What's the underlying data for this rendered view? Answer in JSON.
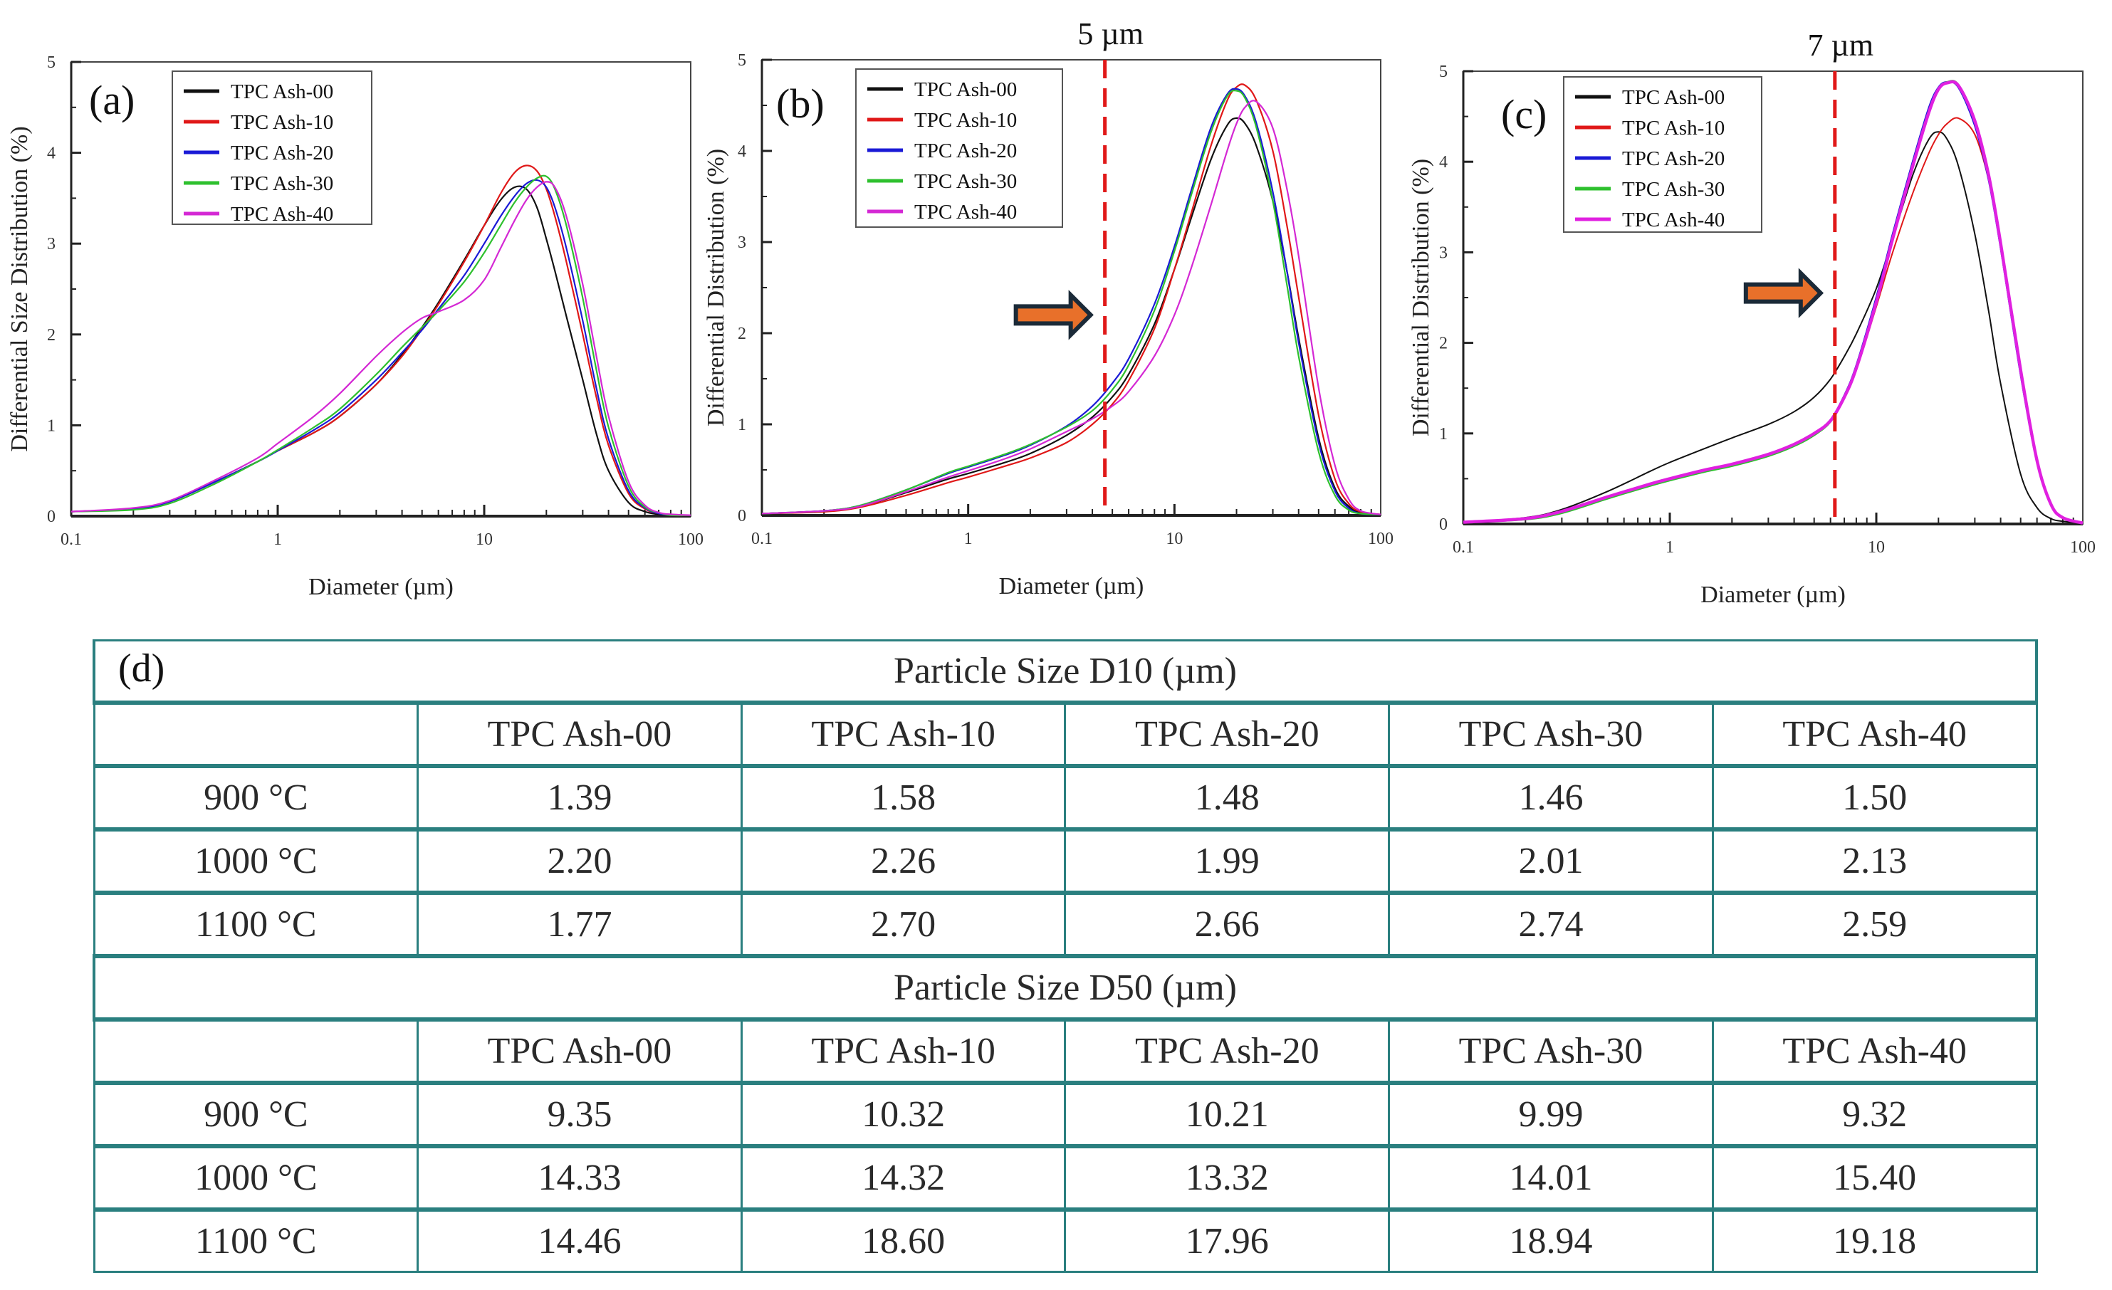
{
  "chart_data": [
    {
      "id": "a",
      "type": "line",
      "panel_label": "(a)",
      "title": "",
      "xlabel": "Diameter (µm)",
      "ylabel": "Differential Size Distribution (%)",
      "xscale": "log",
      "xlim": [
        0.1,
        100
      ],
      "ylim": [
        0,
        5
      ],
      "xticks": [
        "0.1",
        "1",
        "10",
        "100"
      ],
      "yticks": [
        "0",
        "1",
        "2",
        "3",
        "4",
        "5"
      ],
      "legend_position": "top-left",
      "annotation": null,
      "x": [
        0.1,
        0.2,
        0.3,
        0.5,
        0.8,
        1,
        1.5,
        2,
        3,
        4,
        5,
        6,
        8,
        10,
        12,
        14,
        16,
        18,
        20,
        22,
        25,
        30,
        35,
        40,
        50,
        60,
        70,
        80,
        100
      ],
      "series": [
        {
          "name": "TPC Ash-00",
          "color": "#111111",
          "values": [
            0.05,
            0.08,
            0.16,
            0.38,
            0.6,
            0.72,
            0.92,
            1.1,
            1.45,
            1.78,
            2.08,
            2.35,
            2.82,
            3.2,
            3.48,
            3.62,
            3.6,
            3.4,
            3.05,
            2.7,
            2.2,
            1.5,
            0.9,
            0.5,
            0.15,
            0.05,
            0.02,
            0.01,
            0.01
          ]
        },
        {
          "name": "TPC Ash-10",
          "color": "#e01818",
          "values": [
            0.05,
            0.08,
            0.16,
            0.38,
            0.6,
            0.72,
            0.92,
            1.1,
            1.45,
            1.76,
            2.06,
            2.33,
            2.8,
            3.2,
            3.55,
            3.78,
            3.86,
            3.8,
            3.6,
            3.3,
            2.8,
            2.0,
            1.3,
            0.78,
            0.25,
            0.08,
            0.03,
            0.01,
            0.01
          ]
        },
        {
          "name": "TPC Ash-20",
          "color": "#1a1ad6",
          "values": [
            0.05,
            0.08,
            0.16,
            0.38,
            0.6,
            0.72,
            0.95,
            1.14,
            1.5,
            1.8,
            2.05,
            2.28,
            2.65,
            3.0,
            3.3,
            3.52,
            3.66,
            3.7,
            3.62,
            3.4,
            2.95,
            2.15,
            1.4,
            0.85,
            0.28,
            0.09,
            0.03,
            0.01,
            0.01
          ]
        },
        {
          "name": "TPC Ash-30",
          "color": "#2ec02e",
          "values": [
            0.05,
            0.07,
            0.14,
            0.36,
            0.6,
            0.73,
            0.98,
            1.18,
            1.56,
            1.86,
            2.08,
            2.26,
            2.58,
            2.9,
            3.2,
            3.45,
            3.62,
            3.72,
            3.74,
            3.6,
            3.2,
            2.4,
            1.6,
            0.98,
            0.33,
            0.1,
            0.04,
            0.01,
            0.01
          ]
        },
        {
          "name": "TPC Ash-40",
          "color": "#d428d4",
          "values": [
            0.05,
            0.09,
            0.17,
            0.4,
            0.64,
            0.8,
            1.1,
            1.35,
            1.76,
            2.02,
            2.18,
            2.25,
            2.38,
            2.6,
            2.95,
            3.25,
            3.48,
            3.62,
            3.68,
            3.62,
            3.3,
            2.55,
            1.75,
            1.1,
            0.38,
            0.12,
            0.04,
            0.02,
            0.01
          ]
        }
      ]
    },
    {
      "id": "b",
      "type": "line",
      "panel_label": "(b)",
      "title": "",
      "xlabel": "Diameter (µm)",
      "ylabel": "Differential Distribution (%)",
      "xscale": "log",
      "xlim": [
        0.1,
        100
      ],
      "ylim": [
        0,
        5
      ],
      "xticks": [
        "0.1",
        "1",
        "10",
        "100"
      ],
      "yticks": [
        "0",
        "1",
        "2",
        "3",
        "4",
        "5"
      ],
      "legend_position": "top-left",
      "annotation": {
        "text": "5 µm",
        "x": 4.6,
        "arrow": true
      },
      "x": [
        0.1,
        0.2,
        0.3,
        0.5,
        0.8,
        1,
        1.5,
        2,
        3,
        4,
        5,
        6,
        8,
        10,
        12,
        15,
        18,
        20,
        22,
        25,
        30,
        35,
        40,
        50,
        60,
        70,
        80,
        100
      ],
      "series": [
        {
          "name": "TPC Ash-00",
          "color": "#111111",
          "values": [
            0.02,
            0.05,
            0.1,
            0.25,
            0.4,
            0.46,
            0.58,
            0.68,
            0.88,
            1.08,
            1.3,
            1.55,
            2.1,
            2.7,
            3.25,
            3.9,
            4.28,
            4.36,
            4.3,
            4.05,
            3.45,
            2.7,
            1.95,
            0.85,
            0.3,
            0.1,
            0.03,
            0.01
          ]
        },
        {
          "name": "TPC Ash-10",
          "color": "#e01818",
          "values": [
            0.02,
            0.04,
            0.09,
            0.22,
            0.36,
            0.42,
            0.54,
            0.63,
            0.8,
            1.0,
            1.22,
            1.48,
            2.05,
            2.7,
            3.3,
            4.05,
            4.55,
            4.7,
            4.72,
            4.55,
            4.0,
            3.2,
            2.4,
            1.1,
            0.4,
            0.13,
            0.04,
            0.01
          ]
        },
        {
          "name": "TPC Ash-20",
          "color": "#1a1ad6",
          "values": [
            0.02,
            0.05,
            0.11,
            0.28,
            0.46,
            0.53,
            0.66,
            0.77,
            0.98,
            1.2,
            1.45,
            1.72,
            2.32,
            2.95,
            3.55,
            4.25,
            4.62,
            4.68,
            4.6,
            4.3,
            3.55,
            2.7,
            1.9,
            0.8,
            0.27,
            0.08,
            0.02,
            0.01
          ]
        },
        {
          "name": "TPC Ash-30",
          "color": "#2ec02e",
          "values": [
            0.02,
            0.05,
            0.11,
            0.28,
            0.47,
            0.54,
            0.67,
            0.78,
            0.97,
            1.15,
            1.38,
            1.65,
            2.25,
            2.9,
            3.5,
            4.2,
            4.6,
            4.66,
            4.58,
            4.25,
            3.45,
            2.55,
            1.75,
            0.7,
            0.22,
            0.06,
            0.02,
            0.01
          ]
        },
        {
          "name": "TPC Ash-40",
          "color": "#d428d4",
          "values": [
            0.02,
            0.05,
            0.1,
            0.26,
            0.42,
            0.49,
            0.62,
            0.73,
            0.92,
            1.06,
            1.2,
            1.36,
            1.75,
            2.2,
            2.7,
            3.4,
            4.0,
            4.3,
            4.48,
            4.54,
            4.25,
            3.6,
            2.85,
            1.4,
            0.55,
            0.18,
            0.05,
            0.01
          ]
        }
      ]
    },
    {
      "id": "c",
      "type": "line",
      "panel_label": "(c)",
      "title": "",
      "xlabel": "Diameter (µm)",
      "ylabel": "Differential Distribution (%)",
      "xscale": "log",
      "xlim": [
        0.1,
        100
      ],
      "ylim": [
        0,
        5
      ],
      "xticks": [
        "0.1",
        "1",
        "10",
        "100"
      ],
      "yticks": [
        "0",
        "1",
        "2",
        "3",
        "4",
        "5"
      ],
      "legend_position": "top-left",
      "annotation": {
        "text": "7 µm",
        "x": 6.3,
        "arrow": true
      },
      "x": [
        0.1,
        0.2,
        0.3,
        0.5,
        0.8,
        1,
        1.5,
        2,
        3,
        4,
        5,
        6,
        7,
        8,
        10,
        12,
        15,
        18,
        20,
        22,
        25,
        30,
        35,
        40,
        50,
        60,
        70,
        80,
        100
      ],
      "series": [
        {
          "name": "TPC Ash-00",
          "color": "#111111",
          "values": [
            0.02,
            0.07,
            0.16,
            0.36,
            0.58,
            0.68,
            0.84,
            0.95,
            1.1,
            1.24,
            1.4,
            1.6,
            1.85,
            2.1,
            2.6,
            3.15,
            3.85,
            4.25,
            4.33,
            4.25,
            3.95,
            3.2,
            2.35,
            1.55,
            0.55,
            0.18,
            0.06,
            0.03,
            0.01
          ]
        },
        {
          "name": "TPC Ash-10",
          "color": "#e01818",
          "values": [
            0.02,
            0.06,
            0.14,
            0.3,
            0.44,
            0.5,
            0.6,
            0.66,
            0.77,
            0.88,
            1.0,
            1.15,
            1.4,
            1.7,
            2.4,
            3.0,
            3.65,
            4.1,
            4.3,
            4.42,
            4.48,
            4.3,
            3.8,
            3.1,
            1.7,
            0.7,
            0.22,
            0.07,
            0.01
          ]
        },
        {
          "name": "TPC Ash-20",
          "color": "#1a1ad6",
          "values": [
            0.02,
            0.06,
            0.14,
            0.3,
            0.44,
            0.5,
            0.6,
            0.66,
            0.77,
            0.88,
            1.0,
            1.15,
            1.42,
            1.75,
            2.5,
            3.2,
            4.0,
            4.6,
            4.82,
            4.88,
            4.82,
            4.4,
            3.8,
            3.05,
            1.65,
            0.68,
            0.22,
            0.07,
            0.01
          ]
        },
        {
          "name": "TPC Ash-30",
          "color": "#2ec02e",
          "values": [
            0.02,
            0.05,
            0.12,
            0.28,
            0.42,
            0.48,
            0.58,
            0.64,
            0.75,
            0.86,
            0.98,
            1.13,
            1.4,
            1.72,
            2.45,
            3.15,
            3.95,
            4.55,
            4.8,
            4.88,
            4.85,
            4.45,
            3.85,
            3.1,
            1.7,
            0.7,
            0.22,
            0.07,
            0.01
          ]
        },
        {
          "name": "TPC Ash-40",
          "color": "#e020e0",
          "values": [
            0.02,
            0.06,
            0.14,
            0.3,
            0.44,
            0.5,
            0.6,
            0.66,
            0.77,
            0.88,
            1.0,
            1.14,
            1.4,
            1.72,
            2.45,
            3.15,
            3.95,
            4.55,
            4.8,
            4.87,
            4.84,
            4.45,
            3.85,
            3.1,
            1.7,
            0.7,
            0.22,
            0.07,
            0.01
          ]
        }
      ]
    },
    {
      "id": "d",
      "type": "table",
      "panel_label": "(d)",
      "sections": [
        {
          "title": "Particle Size D10 (µm)",
          "columns": [
            "",
            "TPC Ash-00",
            "TPC Ash-10",
            "TPC Ash-20",
            "TPC Ash-30",
            "TPC Ash-40"
          ],
          "rows": [
            [
              "900 °C",
              "1.39",
              "1.58",
              "1.48",
              "1.46",
              "1.50"
            ],
            [
              "1000 °C",
              "2.20",
              "2.26",
              "1.99",
              "2.01",
              "2.13"
            ],
            [
              "1100 °C",
              "1.77",
              "2.70",
              "2.66",
              "2.74",
              "2.59"
            ]
          ]
        },
        {
          "title": "Particle Size D50 (µm)",
          "columns": [
            "",
            "TPC Ash-00",
            "TPC Ash-10",
            "TPC Ash-20",
            "TPC Ash-30",
            "TPC Ash-40"
          ],
          "rows": [
            [
              "900 °C",
              "9.35",
              "10.32",
              "10.21",
              "9.99",
              "9.32"
            ],
            [
              "1000 °C",
              "14.33",
              "14.32",
              "13.32",
              "14.01",
              "15.40"
            ],
            [
              "1100 °C",
              "14.46",
              "18.60",
              "17.96",
              "18.94",
              "19.18"
            ]
          ]
        }
      ]
    }
  ],
  "colors": {
    "table_border": "#2a7f7f",
    "dashed_line": "#e01818",
    "arrow_fill": "#e8702a",
    "arrow_outline": "#1b2a38"
  }
}
